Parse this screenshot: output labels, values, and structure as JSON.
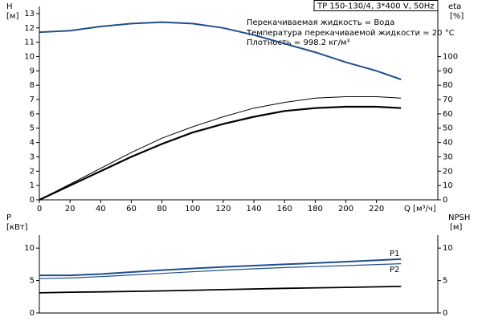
{
  "chart_data": [
    {
      "type": "line",
      "title": "TP 150-130/4, 3*400 V, 50Hz",
      "annotations": [
        "Перекачиваемая жидкость = Вода",
        "Температура перекачиваемой жидкости = 20 °C",
        "Плотность = 998.2 кг/м³"
      ],
      "ylabel": "H",
      "yunit": "[м]",
      "y2label": "eta",
      "y2unit": "[%]",
      "xlabel": "Q [м³/ч]",
      "x": [
        0,
        20,
        40,
        60,
        80,
        100,
        120,
        140,
        160,
        180,
        200,
        220,
        236
      ],
      "xlim": [
        0,
        260
      ],
      "xticks": [
        0,
        20,
        40,
        60,
        80,
        100,
        120,
        140,
        160,
        180,
        200,
        220
      ],
      "ylim": [
        0,
        13.5
      ],
      "yticks": [
        0,
        1,
        2,
        3,
        4,
        5,
        6,
        7,
        8,
        9,
        10,
        11,
        12,
        13
      ],
      "y2lim": [
        0,
        135
      ],
      "y2ticks": [
        0,
        10,
        20,
        30,
        40,
        50,
        60,
        70,
        80,
        90,
        100
      ],
      "series": [
        {
          "color": "#1f4e8c",
          "values": [
            11.7,
            11.8,
            12.1,
            12.3,
            12.4,
            12.3,
            12.0,
            11.5,
            10.9,
            10.3,
            9.6,
            9.0,
            8.4
          ]
        },
        {
          "color": "#000000",
          "axis": "y2",
          "values": [
            0,
            11,
            22,
            33,
            43,
            51,
            58,
            64,
            68,
            71,
            72,
            72,
            71
          ]
        },
        {
          "color": "#000000",
          "axis": "y2",
          "values": [
            0,
            10,
            20,
            30,
            39,
            47,
            53,
            58,
            62,
            64,
            65,
            65,
            64
          ]
        }
      ]
    },
    {
      "type": "line",
      "ylabel": "P",
      "yunit": "[кВт]",
      "y2label": "NPSH",
      "y2unit": "[м]",
      "x": [
        0,
        20,
        40,
        80,
        120,
        160,
        200,
        236
      ],
      "xlim": [
        0,
        260
      ],
      "ylim": [
        0,
        12
      ],
      "yticks": [
        0,
        5,
        10
      ],
      "y2lim": [
        0,
        12
      ],
      "y2ticks": [
        0,
        5,
        10
      ],
      "series": [
        {
          "name": "P1",
          "color": "#1f4e8c",
          "values": [
            5.8,
            5.8,
            6.0,
            6.6,
            7.1,
            7.5,
            7.9,
            8.3
          ]
        },
        {
          "name": "P2",
          "color": "#1f4e8c",
          "values": [
            5.3,
            5.4,
            5.6,
            6.1,
            6.6,
            7.0,
            7.3,
            7.6
          ]
        },
        {
          "color": "#000000",
          "axis": "y2",
          "values": [
            3.1,
            3.2,
            3.25,
            3.4,
            3.6,
            3.8,
            3.95,
            4.1
          ]
        }
      ]
    }
  ]
}
